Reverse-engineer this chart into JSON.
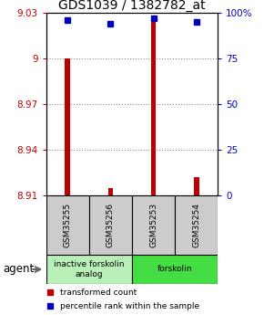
{
  "title": "GDS1039 / 1382782_at",
  "samples": [
    "GSM35255",
    "GSM35256",
    "GSM35253",
    "GSM35254"
  ],
  "red_values": [
    9.0,
    8.915,
    9.028,
    8.922
  ],
  "blue_values": [
    96,
    94,
    97,
    95
  ],
  "ylim_left": [
    8.91,
    9.03
  ],
  "ylim_right": [
    0,
    100
  ],
  "yticks_left": [
    8.91,
    8.94,
    8.97,
    9.0,
    9.03
  ],
  "yticks_right": [
    0,
    25,
    50,
    75,
    100
  ],
  "ytick_labels_left": [
    "8.91",
    "8.94",
    "8.97",
    "9",
    "9.03"
  ],
  "ytick_labels_right": [
    "0",
    "25",
    "50",
    "75",
    "100%"
  ],
  "groups": [
    {
      "label": "inactive forskolin\nanalog",
      "color": "#b8f0b8",
      "samples": [
        0,
        1
      ]
    },
    {
      "label": "forskolin",
      "color": "#44dd44",
      "samples": [
        2,
        3
      ]
    }
  ],
  "bar_color": "#bb0000",
  "dot_color": "#0000bb",
  "agent_label": "agent",
  "legend_red": "transformed count",
  "legend_blue": "percentile rank within the sample",
  "grid_color": "#888888",
  "bg_color": "#ffffff",
  "plot_bg": "#ffffff",
  "box_color": "#cccccc",
  "title_fontsize": 10,
  "tick_fontsize": 7.5,
  "bar_width": 0.12
}
